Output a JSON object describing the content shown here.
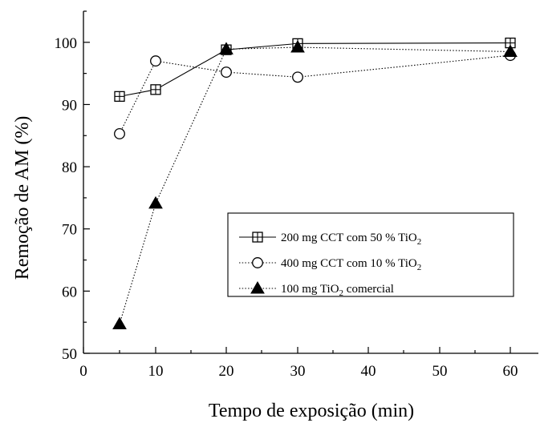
{
  "chart_data": {
    "type": "line",
    "xlabel": "Tempo de exposição (min)",
    "ylabel": "Remoção de AM (%)",
    "x_categories": [
      "0",
      "10",
      "20",
      "30",
      "40",
      "50",
      "60"
    ],
    "yticks": [
      50,
      60,
      70,
      80,
      90,
      100
    ],
    "ylim": [
      50,
      105
    ],
    "grid": false,
    "legend_position": "lower-right",
    "series": [
      {
        "name_parts": [
          "200 mg CCT com 50 % TiO",
          "2"
        ],
        "marker": "square-cross",
        "line": "solid",
        "points": [
          {
            "x": "5",
            "y": 91.3
          },
          {
            "x": "10",
            "y": 92.4
          },
          {
            "x": "20",
            "y": 98.8
          },
          {
            "x": "30",
            "y": 99.8
          },
          {
            "x": "60",
            "y": 99.9
          }
        ]
      },
      {
        "name_parts": [
          "400 mg CCT com 10 % TiO",
          "2"
        ],
        "marker": "open-circle",
        "line": "dotted",
        "points": [
          {
            "x": "5",
            "y": 85.3
          },
          {
            "x": "10",
            "y": 97.0
          },
          {
            "x": "20",
            "y": 95.2
          },
          {
            "x": "30",
            "y": 94.4
          },
          {
            "x": "60",
            "y": 97.9
          }
        ]
      },
      {
        "name_parts": [
          "100 mg TiO",
          "2",
          " comercial"
        ],
        "marker": "filled-triangle",
        "line": "dotted",
        "points": [
          {
            "x": "5",
            "y": 54.7
          },
          {
            "x": "10",
            "y": 74.1
          },
          {
            "x": "20",
            "y": 98.9
          },
          {
            "x": "30",
            "y": 99.2
          },
          {
            "x": "60",
            "y": 98.5
          }
        ]
      }
    ]
  }
}
